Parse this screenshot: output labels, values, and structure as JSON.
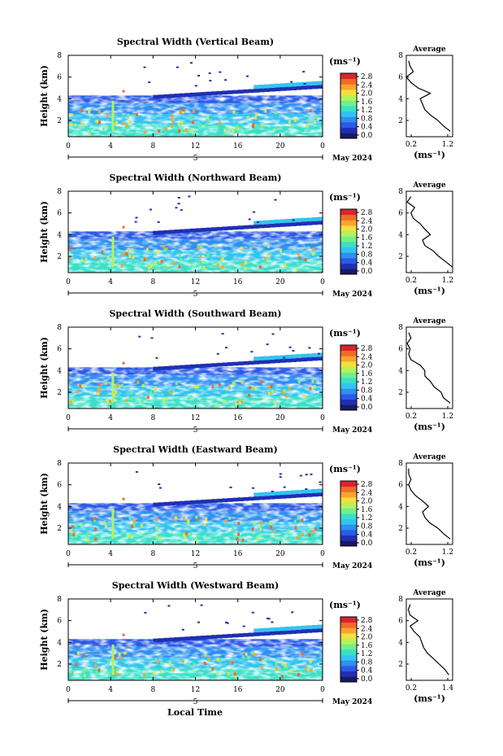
{
  "figure": {
    "xlabel": "Local Time",
    "month_label": "May 2024",
    "day_label": "5",
    "unit_label": "(ms⁻¹)",
    "ylabel": "Height (km)",
    "avg_title": "Average",
    "avg_xlabel": "(ms⁻¹)"
  },
  "colorbar": {
    "ticks": [
      "2.8",
      "2.4",
      "2.0",
      "1.6",
      "1.2",
      "0.8",
      "0.4",
      "0.0"
    ],
    "colors": [
      "#1a1a60",
      "#1f2fb5",
      "#2b5ae8",
      "#2f8ff2",
      "#33c4ee",
      "#39e0c8",
      "#6ef08e",
      "#b8f25a",
      "#f0e040",
      "#f7a52f",
      "#f06a2a",
      "#d8262a"
    ]
  },
  "chart_data": [
    {
      "type": "heatmap",
      "title": "Spectral Width (Vertical Beam)",
      "x_ticks": [
        "0",
        "4",
        "8",
        "12",
        "16",
        "20",
        "0"
      ],
      "y_ticks": [
        "2",
        "4",
        "6",
        "8"
      ],
      "xlim": [
        0,
        24
      ],
      "ylim": [
        0.5,
        8
      ],
      "colorbar_range": [
        0.0,
        2.8
      ],
      "avg_profile": {
        "title": "Average",
        "xlim": [
          0.2,
          1.2
        ],
        "x_ticks": [
          "0.2",
          "1.2"
        ],
        "heights": [
          1.0,
          1.5,
          2.0,
          2.5,
          3.0,
          3.5,
          4.0,
          4.5,
          5.0,
          5.5,
          6.0,
          6.5,
          7.0,
          7.5
        ],
        "values": [
          1.15,
          1.0,
          0.88,
          0.72,
          0.6,
          0.55,
          0.5,
          0.72,
          0.45,
          0.3,
          0.2,
          0.35,
          0.28,
          0.25
        ]
      }
    },
    {
      "type": "heatmap",
      "title": "Spectral Width (Northward Beam)",
      "x_ticks": [
        "0",
        "4",
        "8",
        "12",
        "16",
        "20",
        "0"
      ],
      "y_ticks": [
        "2",
        "4",
        "6",
        "8"
      ],
      "xlim": [
        0,
        24
      ],
      "ylim": [
        0.5,
        8
      ],
      "colorbar_range": [
        0.0,
        2.8
      ],
      "avg_profile": {
        "title": "Average",
        "xlim": [
          0.2,
          1.2
        ],
        "x_ticks": [
          "0.2",
          "1.2"
        ],
        "heights": [
          1.0,
          1.5,
          2.0,
          2.5,
          3.0,
          3.5,
          4.0,
          4.5,
          5.0,
          5.5,
          6.0,
          6.5,
          7.0,
          7.5
        ],
        "values": [
          1.2,
          1.05,
          0.9,
          0.78,
          0.6,
          0.55,
          0.72,
          0.6,
          0.5,
          0.35,
          0.3,
          0.38,
          0.22,
          0.3
        ]
      }
    },
    {
      "type": "heatmap",
      "title": "Spectral Width (Southward Beam)",
      "x_ticks": [
        "0",
        "4",
        "8",
        "12",
        "16",
        "20",
        "0"
      ],
      "y_ticks": [
        "2",
        "4",
        "6",
        "8"
      ],
      "xlim": [
        0,
        24
      ],
      "ylim": [
        0.5,
        8
      ],
      "colorbar_range": [
        0.0,
        2.8
      ],
      "avg_profile": {
        "title": "Average",
        "xlim": [
          0.2,
          1.2
        ],
        "x_ticks": [
          "0.2",
          "1.2"
        ],
        "heights": [
          1.0,
          1.5,
          2.0,
          2.5,
          3.0,
          3.5,
          4.0,
          4.5,
          5.0,
          5.5,
          6.0,
          6.5,
          7.0,
          7.5
        ],
        "values": [
          1.15,
          1.0,
          0.95,
          0.8,
          0.72,
          0.6,
          0.6,
          0.5,
          0.3,
          0.25,
          0.28,
          0.22,
          0.3,
          0.25
        ]
      }
    },
    {
      "type": "heatmap",
      "title": "Spectral Width (Eastward Beam)",
      "x_ticks": [
        "0",
        "4",
        "8",
        "12",
        "16",
        "20",
        "0"
      ],
      "y_ticks": [
        "2",
        "4",
        "6",
        "8"
      ],
      "xlim": [
        0,
        24
      ],
      "ylim": [
        0.5,
        8
      ],
      "colorbar_range": [
        0.0,
        2.8
      ],
      "avg_profile": {
        "title": "Average",
        "xlim": [
          0.2,
          1.2
        ],
        "x_ticks": [
          "0.2",
          "1.2"
        ],
        "heights": [
          1.0,
          1.5,
          2.0,
          2.5,
          3.0,
          3.5,
          4.0,
          4.5,
          5.0,
          5.5,
          6.0,
          6.5,
          7.0,
          7.5
        ],
        "values": [
          1.15,
          1.0,
          0.88,
          0.7,
          0.6,
          0.55,
          0.68,
          0.55,
          0.4,
          0.3,
          0.25,
          0.3,
          0.25,
          0.25
        ]
      }
    },
    {
      "type": "heatmap",
      "title": "Spectral Width (Westward Beam)",
      "x_ticks": [
        "0",
        "4",
        "8",
        "12",
        "16",
        "20",
        "0"
      ],
      "y_ticks": [
        "2",
        "4",
        "6",
        "8"
      ],
      "xlim": [
        0,
        24
      ],
      "ylim": [
        0.5,
        8
      ],
      "colorbar_range": [
        0.0,
        2.8
      ],
      "avg_profile": {
        "title": "Average",
        "xlim": [
          0.2,
          1.4
        ],
        "x_ticks": [
          "0.2",
          "1.4"
        ],
        "heights": [
          1.0,
          1.5,
          2.0,
          2.5,
          3.0,
          3.5,
          4.0,
          4.5,
          5.0,
          5.5,
          6.0,
          6.5,
          7.0,
          7.5
        ],
        "values": [
          1.3,
          1.2,
          1.05,
          0.9,
          0.75,
          0.65,
          0.6,
          0.55,
          0.4,
          0.3,
          0.5,
          0.3,
          0.25,
          0.3
        ]
      }
    }
  ]
}
